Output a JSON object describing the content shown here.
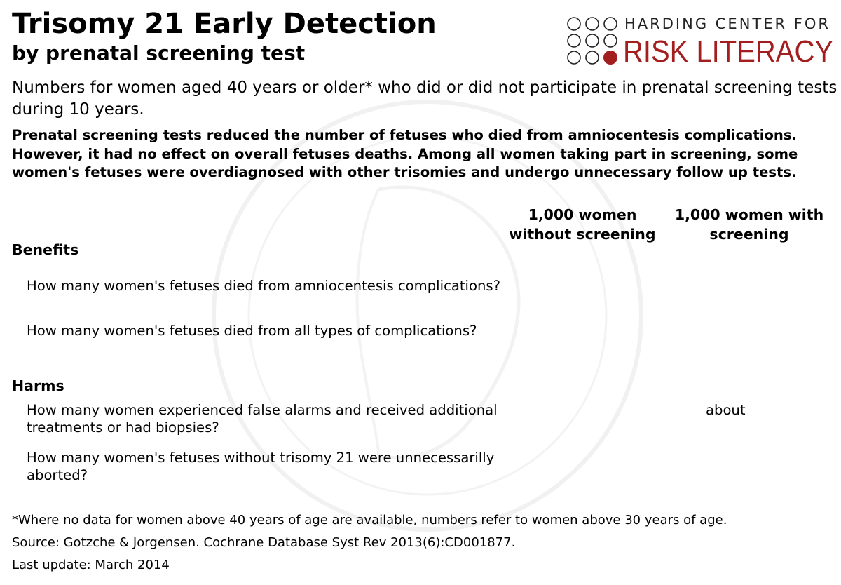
{
  "header": {
    "title": "Trisomy 21 Early Detection",
    "subtitle": "by prenatal screening test"
  },
  "logo": {
    "line1": "HARDING CENTER FOR",
    "line2": "RISK LITERACY",
    "accent_color": "#a31f1f"
  },
  "intro": "Numbers for women aged 40 years or older* who did or did not participate in prenatal screening tests during 10 years.",
  "summary": "Prenatal screening tests reduced the number of fetuses who died from amniocentesis complications. However, it had no effect on overall fetuses deaths. Among all women taking part in screening, some women's fetuses were overdiagnosed with other trisomies and undergo unnecessary follow up tests.",
  "columns": {
    "without": "1,000 women without screening",
    "with": "1,000 women with screening"
  },
  "benefits": {
    "heading": "Benefits",
    "q1": "How many women's fetuses died from amniocentesis complications?",
    "q2": "How many women's fetuses died from all types of complications?"
  },
  "harms": {
    "heading": "Harms",
    "q1": "How many women experienced false alarms and received additional treatments or had biopsies?",
    "q1_with_value": "about",
    "q2": "How many women's fetuses without trisomy 21 were unnecessarilly aborted?"
  },
  "footer": {
    "note": "*Where no data for women above 40 years of age are available, numbers refer to women above 30 years of age.",
    "source": "Source: Gotzche & Jorgensen. Cochrane Database Syst Rev 2013(6):CD001877.",
    "update": "Last update: March 2014"
  }
}
